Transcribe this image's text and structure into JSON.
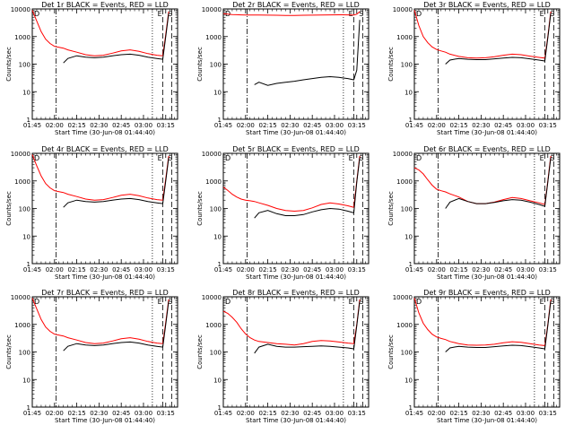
{
  "figure": {
    "time_labels": [
      "01:45",
      "02:00",
      "02:15",
      "02:30",
      "02:45",
      "03:00",
      "03:15"
    ],
    "y_tick_labels": [
      "1",
      "10",
      "100",
      "1000",
      "10000"
    ],
    "xlabel": "Start Time (30-Jun-08 01:44:40)",
    "ylabel": "Counts/sec",
    "marker_letters": [
      "D",
      "E",
      "S"
    ]
  },
  "chart_data": [
    {
      "type": "line",
      "title": "Det 1r BLACK = Events, RED = LLD",
      "xlabel": "Start Time (30-Jun-08 01:44:40)",
      "ylabel": "Counts/sec",
      "y_scale": "log",
      "ylim": [
        1,
        10000
      ],
      "xlim": [
        "01:45",
        "03:23"
      ],
      "x_minutes": [
        0,
        3,
        6,
        9,
        12,
        15,
        18,
        21,
        24,
        30,
        36,
        42,
        48,
        54,
        60,
        66,
        72,
        78,
        84,
        88,
        90,
        92
      ],
      "series": [
        {
          "name": "LLD",
          "color": "#ff0000",
          "values": [
            9000,
            3600,
            1500,
            800,
            560,
            440,
            410,
            380,
            330,
            270,
            220,
            200,
            210,
            250,
            300,
            330,
            290,
            240,
            210,
            200,
            1200,
            8000
          ]
        },
        {
          "name": "Events",
          "color": "#000000",
          "values": [
            null,
            null,
            null,
            null,
            null,
            null,
            null,
            110,
            160,
            200,
            180,
            170,
            180,
            200,
            220,
            230,
            210,
            180,
            160,
            150,
            1000,
            7000
          ]
        }
      ],
      "vlines": [
        {
          "x": 16,
          "style": "dashdot"
        },
        {
          "x": 81,
          "style": "dotted"
        },
        {
          "x": 88,
          "style": "dashed"
        },
        {
          "x": 94,
          "style": "dashed"
        }
      ]
    },
    {
      "type": "line",
      "title": "Det 2r BLACK = Events, RED = LLD",
      "xlabel": "Start Time (30-Jun-08 01:44:40)",
      "ylabel": "Counts/sec",
      "y_scale": "log",
      "ylim": [
        1,
        10000
      ],
      "xlim": [
        "01:45",
        "03:23"
      ],
      "x_minutes": [
        0,
        3,
        6,
        9,
        12,
        15,
        18,
        21,
        24,
        30,
        36,
        42,
        48,
        54,
        60,
        66,
        72,
        78,
        84,
        88,
        90,
        92
      ],
      "series": [
        {
          "name": "LLD",
          "color": "#ff0000",
          "values": [
            6800,
            6500,
            6300,
            6200,
            6100,
            6000,
            6000,
            6000,
            6000,
            5950,
            5900,
            5850,
            5850,
            5900,
            5950,
            6000,
            6100,
            6150,
            6100,
            6050,
            6500,
            8000
          ]
        },
        {
          "name": "Events",
          "color": "#000000",
          "values": [
            null,
            null,
            null,
            null,
            null,
            null,
            null,
            18,
            22,
            17,
            20,
            22,
            24,
            27,
            30,
            33,
            35,
            33,
            30,
            27,
            60,
            4000
          ]
        }
      ],
      "vlines": [
        {
          "x": 16,
          "style": "dashdot"
        },
        {
          "x": 81,
          "style": "dotted"
        },
        {
          "x": 88,
          "style": "dashed"
        },
        {
          "x": 94,
          "style": "dashed"
        }
      ]
    },
    {
      "type": "line",
      "title": "Det 3r BLACK = Events, RED = LLD",
      "xlabel": "Start Time (30-Jun-08 01:44:40)",
      "ylabel": "Counts/sec",
      "y_scale": "log",
      "ylim": [
        1,
        10000
      ],
      "xlim": [
        "01:45",
        "03:23"
      ],
      "x_minutes": [
        0,
        3,
        6,
        9,
        12,
        15,
        18,
        21,
        24,
        30,
        36,
        42,
        48,
        54,
        60,
        66,
        72,
        78,
        84,
        88,
        90,
        92
      ],
      "series": [
        {
          "name": "LLD",
          "color": "#ff0000",
          "values": [
            9000,
            2500,
            1000,
            600,
            420,
            340,
            300,
            270,
            230,
            190,
            170,
            165,
            170,
            185,
            210,
            230,
            220,
            195,
            175,
            165,
            1000,
            8000
          ]
        },
        {
          "name": "Events",
          "color": "#000000",
          "values": [
            null,
            null,
            null,
            null,
            null,
            null,
            null,
            100,
            140,
            160,
            150,
            145,
            145,
            155,
            165,
            175,
            170,
            155,
            140,
            130,
            900,
            7000
          ]
        }
      ],
      "vlines": [
        {
          "x": 16,
          "style": "dashdot"
        },
        {
          "x": 81,
          "style": "dotted"
        },
        {
          "x": 88,
          "style": "dashed"
        },
        {
          "x": 94,
          "style": "dashed"
        }
      ]
    },
    {
      "type": "line",
      "title": "Det 4r BLACK = Events, RED = LLD",
      "xlabel": "Start Time (30-Jun-08 01:44:40)",
      "ylabel": "Counts/sec",
      "y_scale": "log",
      "ylim": [
        1,
        10000
      ],
      "xlim": [
        "01:45",
        "03:23"
      ],
      "x_minutes": [
        0,
        3,
        6,
        9,
        12,
        15,
        18,
        21,
        24,
        30,
        36,
        42,
        48,
        54,
        60,
        66,
        72,
        78,
        84,
        88,
        90,
        92
      ],
      "series": [
        {
          "name": "LLD",
          "color": "#ff0000",
          "values": [
            9000,
            3500,
            1500,
            800,
            560,
            440,
            410,
            380,
            330,
            270,
            220,
            200,
            210,
            250,
            300,
            330,
            290,
            240,
            210,
            200,
            1200,
            8000
          ]
        },
        {
          "name": "Events",
          "color": "#000000",
          "values": [
            null,
            null,
            null,
            null,
            null,
            null,
            null,
            110,
            160,
            200,
            180,
            170,
            180,
            200,
            220,
            230,
            210,
            180,
            160,
            150,
            1000,
            7000
          ]
        }
      ],
      "vlines": [
        {
          "x": 16,
          "style": "dashdot"
        },
        {
          "x": 81,
          "style": "dotted"
        },
        {
          "x": 88,
          "style": "dashed"
        },
        {
          "x": 94,
          "style": "dashed"
        }
      ]
    },
    {
      "type": "line",
      "title": "Det 5r BLACK = Events, RED = LLD",
      "xlabel": "Start Time (30-Jun-08 01:44:40)",
      "ylabel": "Counts/sec",
      "y_scale": "log",
      "ylim": [
        1,
        10000
      ],
      "xlim": [
        "01:45",
        "03:23"
      ],
      "x_minutes": [
        0,
        3,
        6,
        9,
        12,
        15,
        18,
        21,
        24,
        30,
        36,
        42,
        48,
        54,
        60,
        66,
        72,
        78,
        84,
        88,
        90,
        92
      ],
      "series": [
        {
          "name": "LLD",
          "color": "#ff0000",
          "values": [
            600,
            450,
            330,
            260,
            220,
            200,
            190,
            180,
            160,
            130,
            100,
            85,
            80,
            85,
            105,
            140,
            160,
            145,
            125,
            110,
            1000,
            8000
          ]
        },
        {
          "name": "Events",
          "color": "#000000",
          "values": [
            null,
            null,
            null,
            null,
            null,
            null,
            null,
            45,
            70,
            85,
            65,
            55,
            55,
            60,
            75,
            90,
            100,
            95,
            80,
            70,
            900,
            7000
          ]
        }
      ],
      "vlines": [
        {
          "x": 16,
          "style": "dashdot"
        },
        {
          "x": 81,
          "style": "dotted"
        },
        {
          "x": 88,
          "style": "dashed"
        },
        {
          "x": 94,
          "style": "dashed"
        }
      ]
    },
    {
      "type": "line",
      "title": "Det 6r BLACK = Events, RED = LLD",
      "xlabel": "Start Time (30-Jun-08 01:44:40)",
      "ylabel": "Counts/sec",
      "y_scale": "log",
      "ylim": [
        1,
        10000
      ],
      "xlim": [
        "01:45",
        "03:23"
      ],
      "x_minutes": [
        0,
        3,
        6,
        9,
        12,
        15,
        18,
        21,
        24,
        30,
        36,
        42,
        48,
        54,
        60,
        66,
        72,
        78,
        84,
        88,
        90,
        92
      ],
      "series": [
        {
          "name": "LLD",
          "color": "#ff0000",
          "values": [
            3000,
            2500,
            1800,
            1100,
            700,
            500,
            440,
            400,
            340,
            260,
            180,
            150,
            150,
            170,
            210,
            250,
            230,
            190,
            160,
            140,
            1000,
            8000
          ]
        },
        {
          "name": "Events",
          "color": "#000000",
          "values": [
            null,
            null,
            null,
            null,
            null,
            null,
            null,
            100,
            170,
            230,
            180,
            150,
            150,
            165,
            190,
            210,
            200,
            170,
            140,
            120,
            900,
            7000
          ]
        }
      ],
      "vlines": [
        {
          "x": 16,
          "style": "dashdot"
        },
        {
          "x": 81,
          "style": "dotted"
        },
        {
          "x": 88,
          "style": "dashed"
        },
        {
          "x": 94,
          "style": "dashed"
        }
      ]
    },
    {
      "type": "line",
      "title": "Det 7r BLACK = Events, RED = LLD",
      "xlabel": "Start Time (30-Jun-08 01:44:40)",
      "ylabel": "Counts/sec",
      "y_scale": "log",
      "ylim": [
        1,
        10000
      ],
      "xlim": [
        "01:45",
        "03:23"
      ],
      "x_minutes": [
        0,
        3,
        6,
        9,
        12,
        15,
        18,
        21,
        24,
        30,
        36,
        42,
        48,
        54,
        60,
        66,
        72,
        78,
        84,
        88,
        90,
        92
      ],
      "series": [
        {
          "name": "LLD",
          "color": "#ff0000",
          "values": [
            9000,
            3600,
            1500,
            800,
            560,
            440,
            410,
            380,
            330,
            270,
            220,
            200,
            210,
            250,
            300,
            330,
            290,
            240,
            210,
            200,
            1200,
            8000
          ]
        },
        {
          "name": "Events",
          "color": "#000000",
          "values": [
            null,
            null,
            null,
            null,
            null,
            null,
            null,
            110,
            160,
            200,
            180,
            170,
            180,
            200,
            220,
            230,
            210,
            180,
            160,
            150,
            1000,
            7000
          ]
        }
      ],
      "vlines": [
        {
          "x": 16,
          "style": "dashdot"
        },
        {
          "x": 81,
          "style": "dotted"
        },
        {
          "x": 88,
          "style": "dashed"
        },
        {
          "x": 94,
          "style": "dashed"
        }
      ]
    },
    {
      "type": "line",
      "title": "Det 8r BLACK = Events, RED = LLD",
      "xlabel": "Start Time (30-Jun-08 01:44:40)",
      "ylabel": "Counts/sec",
      "y_scale": "log",
      "ylim": [
        1,
        10000
      ],
      "xlim": [
        "01:45",
        "03:23"
      ],
      "x_minutes": [
        0,
        3,
        6,
        9,
        12,
        15,
        18,
        21,
        24,
        30,
        36,
        42,
        48,
        54,
        60,
        66,
        72,
        78,
        84,
        88,
        90,
        92
      ],
      "series": [
        {
          "name": "LLD",
          "color": "#ff0000",
          "values": [
            3000,
            2500,
            1800,
            1200,
            700,
            450,
            330,
            270,
            240,
            220,
            200,
            190,
            180,
            200,
            240,
            260,
            250,
            230,
            210,
            200,
            1000,
            8000
          ]
        },
        {
          "name": "Events",
          "color": "#000000",
          "values": [
            null,
            null,
            null,
            null,
            null,
            null,
            null,
            90,
            150,
            190,
            160,
            150,
            150,
            155,
            160,
            165,
            160,
            150,
            140,
            130,
            900,
            7000
          ]
        }
      ],
      "vlines": [
        {
          "x": 16,
          "style": "dashdot"
        },
        {
          "x": 81,
          "style": "dotted"
        },
        {
          "x": 88,
          "style": "dashed"
        },
        {
          "x": 94,
          "style": "dashed"
        }
      ]
    },
    {
      "type": "line",
      "title": "Det 9r BLACK = Events, RED = LLD",
      "xlabel": "Start Time (30-Jun-08 01:44:40)",
      "ylabel": "Counts/sec",
      "y_scale": "log",
      "ylim": [
        1,
        10000
      ],
      "xlim": [
        "01:45",
        "03:23"
      ],
      "x_minutes": [
        0,
        3,
        6,
        9,
        12,
        15,
        18,
        21,
        24,
        30,
        36,
        42,
        48,
        54,
        60,
        66,
        72,
        78,
        84,
        88,
        90,
        92
      ],
      "series": [
        {
          "name": "LLD",
          "color": "#ff0000",
          "values": [
            9000,
            2600,
            1100,
            650,
            440,
            350,
            310,
            280,
            240,
            200,
            180,
            175,
            180,
            190,
            215,
            235,
            225,
            200,
            180,
            170,
            1000,
            8000
          ]
        },
        {
          "name": "Events",
          "color": "#000000",
          "values": [
            null,
            null,
            null,
            null,
            null,
            null,
            null,
            100,
            140,
            160,
            150,
            145,
            145,
            155,
            165,
            175,
            170,
            155,
            140,
            130,
            900,
            7000
          ]
        }
      ],
      "vlines": [
        {
          "x": 16,
          "style": "dashdot"
        },
        {
          "x": 81,
          "style": "dotted"
        },
        {
          "x": 88,
          "style": "dashed"
        },
        {
          "x": 94,
          "style": "dashed"
        }
      ]
    }
  ]
}
